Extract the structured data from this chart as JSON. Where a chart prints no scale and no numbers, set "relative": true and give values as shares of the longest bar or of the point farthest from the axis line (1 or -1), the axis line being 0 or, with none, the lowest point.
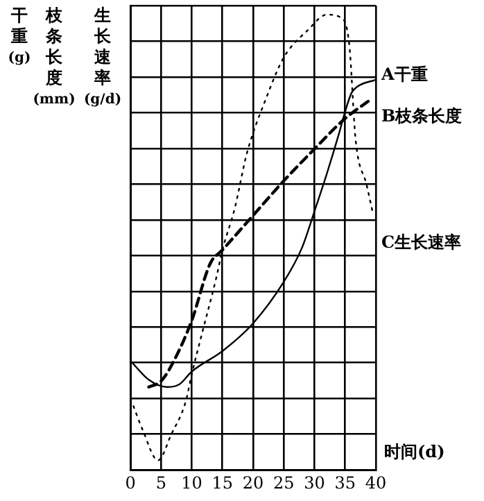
{
  "chart_data": {
    "type": "line",
    "relative": true,
    "xlabel": "时间(d)",
    "annotations": [
      "干重(g)",
      "枝条长度(mm)",
      "生长速率(g/d)"
    ],
    "xlim": [
      0,
      40
    ],
    "xticks": [
      0,
      5,
      10,
      15,
      20,
      25,
      30,
      35,
      40
    ],
    "grid": true,
    "legend": false,
    "marker": "none",
    "tick_labels": "x",
    "series": [
      {
        "name": "A干重",
        "color": "#000000",
        "line_style": "solid",
        "x": [
          0,
          3,
          6,
          8,
          10,
          15,
          20,
          25,
          28,
          30,
          32,
          34,
          35,
          36,
          37,
          40
        ],
        "values": [
          0.24,
          0.198,
          0.182,
          0.188,
          0.216,
          0.261,
          0.322,
          0.413,
          0.489,
          0.568,
          0.65,
          0.739,
          0.787,
          0.827,
          0.842,
          0.857
        ]
      },
      {
        "name": "B枝条长度",
        "color": "#000000",
        "line_style": "dashed",
        "x": [
          3,
          5,
          7,
          10,
          13,
          15,
          20,
          25,
          30,
          35,
          39
        ],
        "values": [
          0.182,
          0.195,
          0.237,
          0.328,
          0.453,
          0.483,
          0.559,
          0.635,
          0.705,
          0.772,
          0.812
        ]
      },
      {
        "name": "C生长速率",
        "color": "#000000",
        "line_style": "dotted",
        "x": [
          0.5,
          2,
          4.5,
          6.7,
          9,
          10,
          11.7,
          14,
          15,
          17,
          19,
          22,
          25,
          29,
          32,
          34.6,
          35.7,
          36.7,
          38.5,
          39.6
        ],
        "values": [
          0.14,
          0.088,
          0.021,
          0.079,
          0.149,
          0.21,
          0.301,
          0.422,
          0.483,
          0.574,
          0.696,
          0.812,
          0.906,
          0.967,
          1.0,
          0.991,
          0.93,
          0.726,
          0.626,
          0.559
        ]
      }
    ]
  }
}
